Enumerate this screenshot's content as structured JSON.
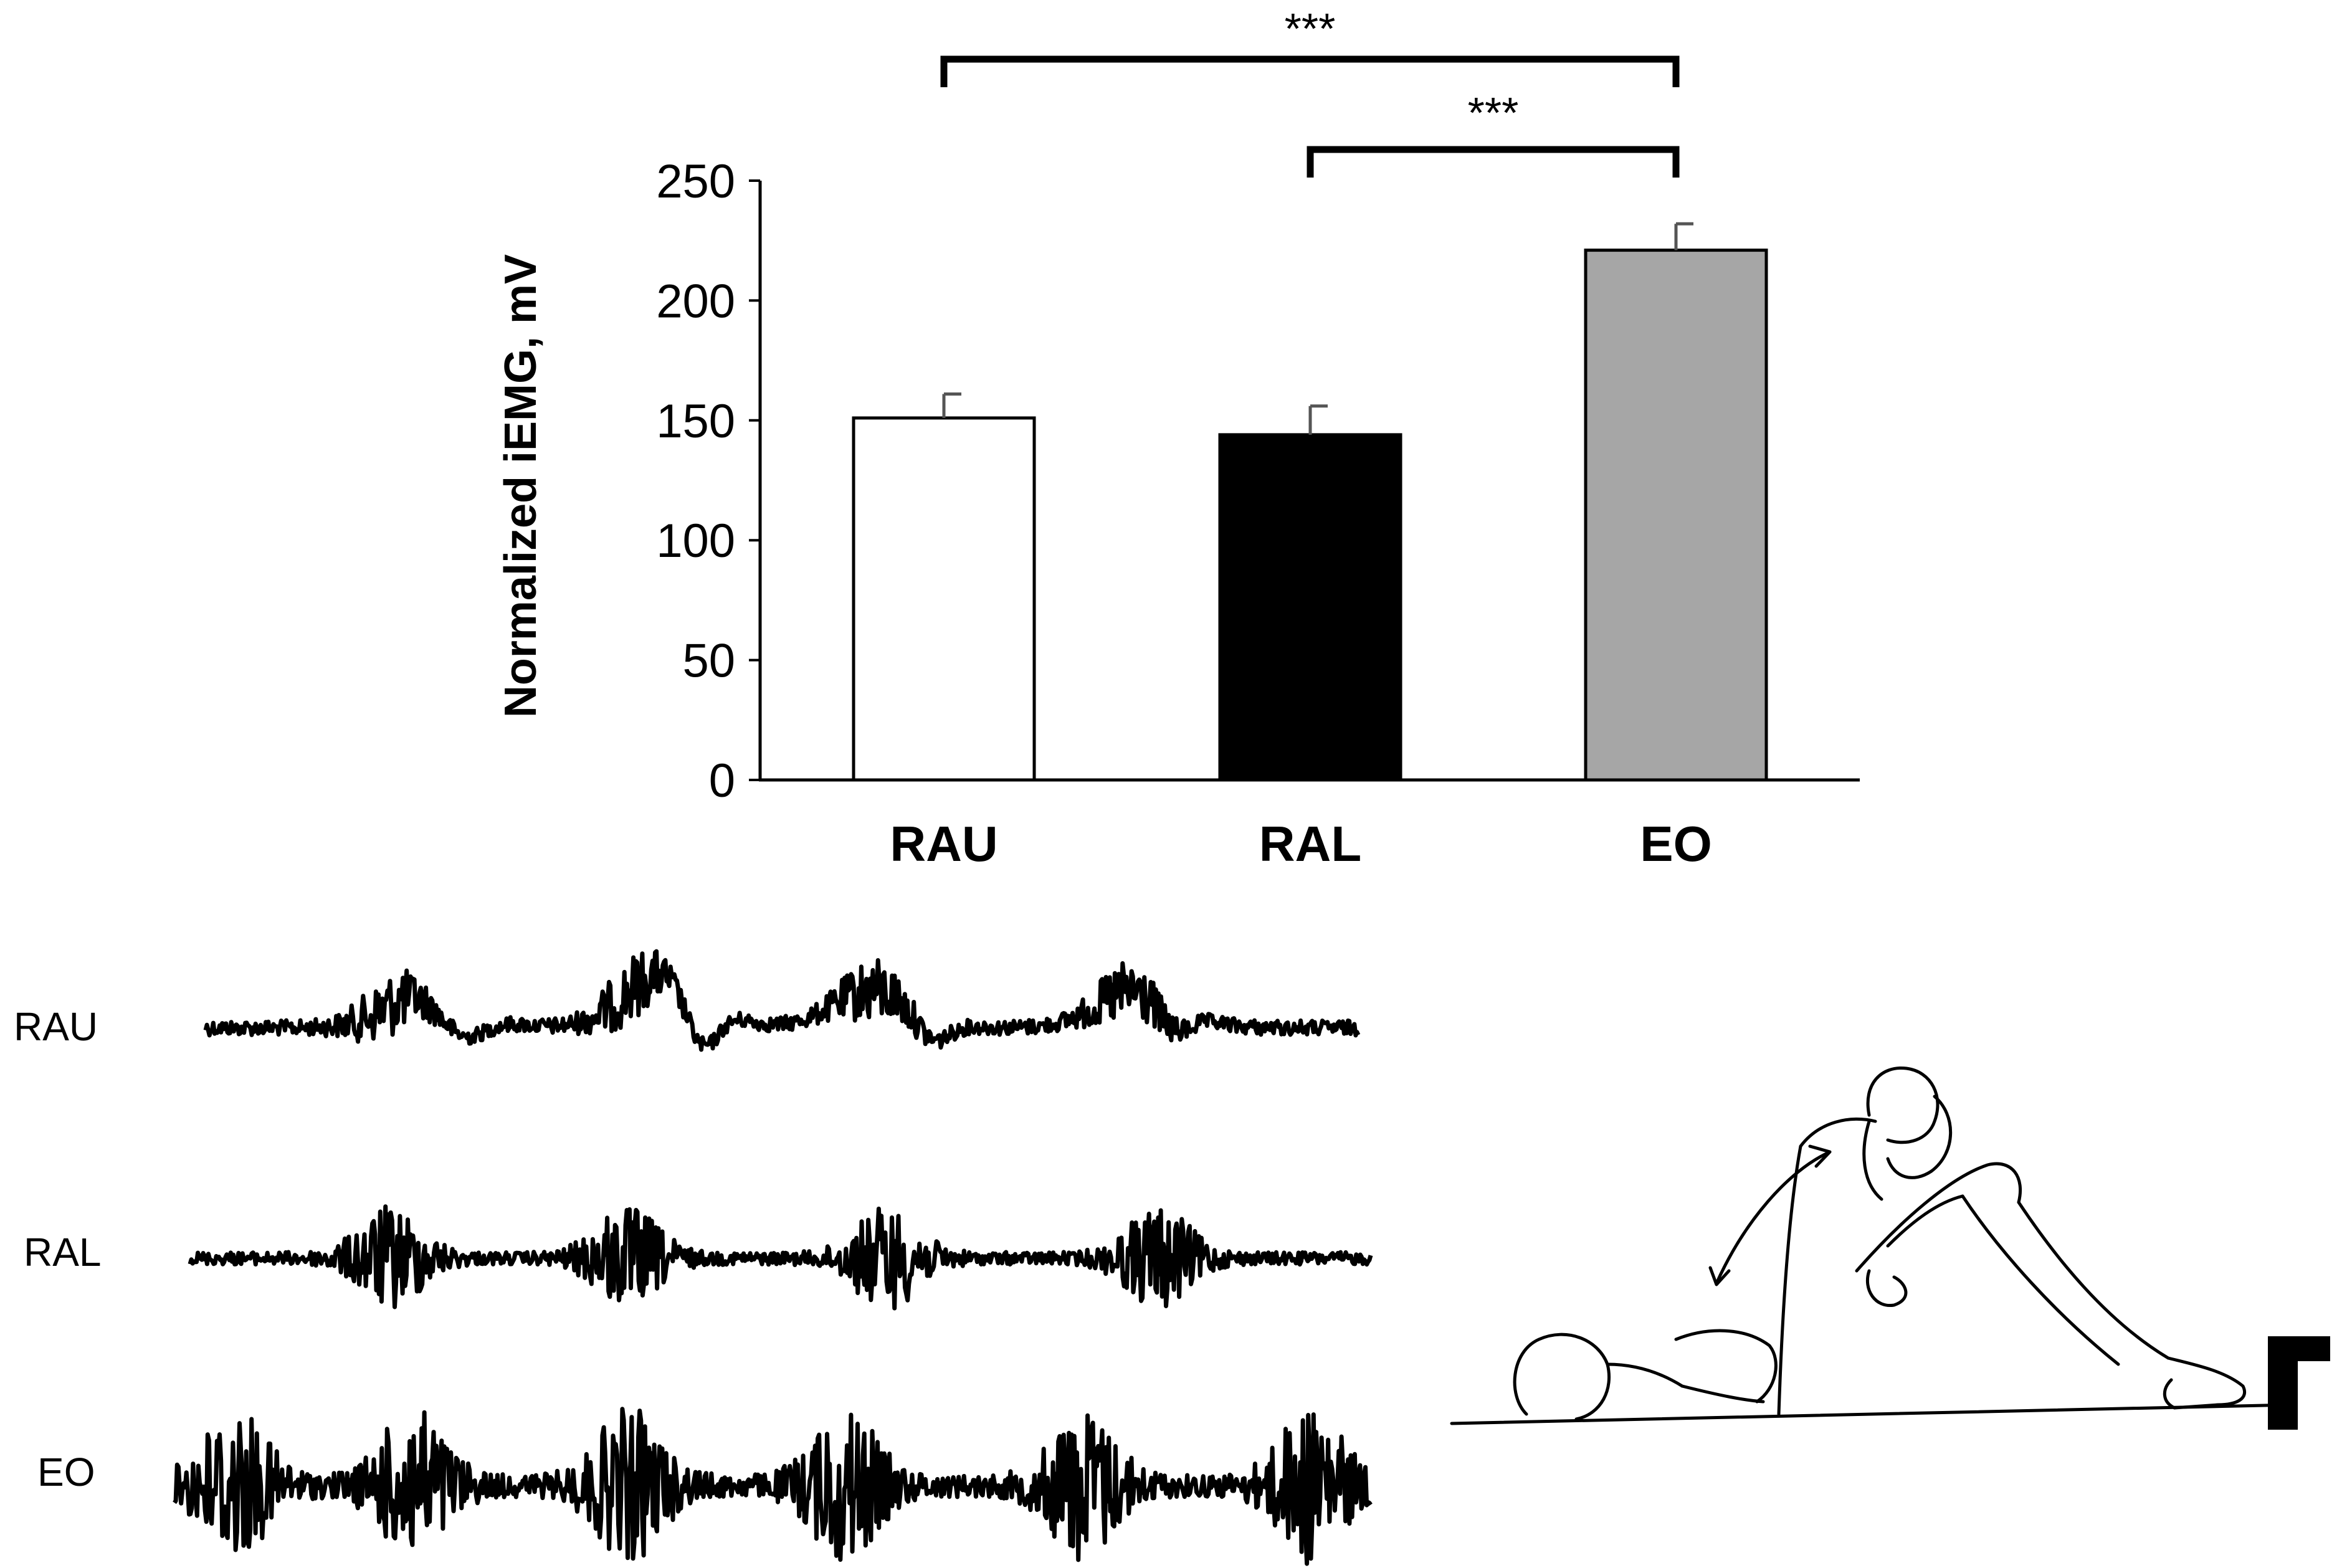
{
  "chart_data": {
    "type": "bar",
    "categories": [
      "RAU",
      "RAL",
      "EO"
    ],
    "values": [
      151,
      144,
      221
    ],
    "errors": [
      10,
      12,
      11
    ],
    "bar_colors": [
      "#ffffff",
      "#000000",
      "#a6a6a6"
    ],
    "ylabel": "Normalized iEMG, mV",
    "xlabel": "",
    "ylim": [
      0,
      250
    ],
    "yticks": [
      0,
      50,
      100,
      150,
      200,
      250
    ],
    "grid": false,
    "legend": "none",
    "significance": [
      {
        "from": "RAU",
        "to": "EO",
        "label": "***"
      },
      {
        "from": "RAL",
        "to": "EO",
        "label": "***"
      }
    ]
  },
  "emg_traces": {
    "labels": [
      "RAU",
      "RAL",
      "EO"
    ]
  },
  "illustration": {
    "icon": "sit-up-exercise-drawing"
  }
}
